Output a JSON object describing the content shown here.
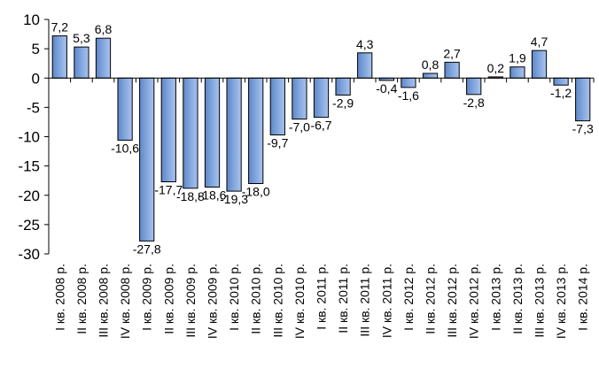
{
  "chart_data": {
    "type": "bar",
    "title": "",
    "xlabel": "",
    "ylabel": "",
    "ylim": [
      -30,
      10
    ],
    "yticks": [
      10,
      5,
      0,
      -5,
      -10,
      -15,
      -20,
      -25,
      -30
    ],
    "grid": false,
    "legend": "none",
    "bar_color": "#7fa4dc",
    "bar_edge_color": "#000000",
    "categories": [
      "I кв. 2008 р.",
      "II кв. 2008 р.",
      "III кв. 2008 р.",
      "IV кв. 2008 р.",
      "I кв. 2009 р.",
      "II кв. 2009 р.",
      "III кв. 2009 р.",
      "IV кв. 2009 р.",
      "I кв. 2010 р.",
      "II кв. 2010 р.",
      "III кв. 2010 р.",
      "IV кв. 2010 р.",
      "I кв. 2011 р.",
      "II кв. 2011 р.",
      "III кв. 2011 р.",
      "IV кв. 2011 р.",
      "I кв. 2012 р.",
      "II кв. 2012 р.",
      "III кв. 2012 р.",
      "IV кв. 2012 р.",
      "I кв. 2013 р.",
      "II кв. 2013 р.",
      "III кв. 2013 р.",
      "IV кв. 2013 р.",
      "I кв. 2014 р."
    ],
    "values": [
      7.2,
      5.3,
      6.8,
      -10.6,
      -27.8,
      -17.7,
      -18.8,
      -18.6,
      -19.3,
      -18.0,
      -9.7,
      -7.0,
      -6.7,
      -2.9,
      4.3,
      -0.4,
      -1.6,
      0.8,
      2.7,
      -2.8,
      0.2,
      1.9,
      4.7,
      -1.2,
      -7.3
    ],
    "data_labels": [
      "7,2",
      "5,3",
      "6,8",
      "-10,6",
      "-27,8",
      "-17,7",
      "-18,8",
      "-18,6",
      "-19,3",
      "-18,0",
      "-9,7",
      "-7,0",
      "-6,7",
      "-2,9",
      "4,3",
      "-0,4",
      "-1,6",
      "0,8",
      "2,7",
      "-2,8",
      "0,2",
      "1,9",
      "4,7",
      "-1,2",
      "-7,3"
    ]
  }
}
